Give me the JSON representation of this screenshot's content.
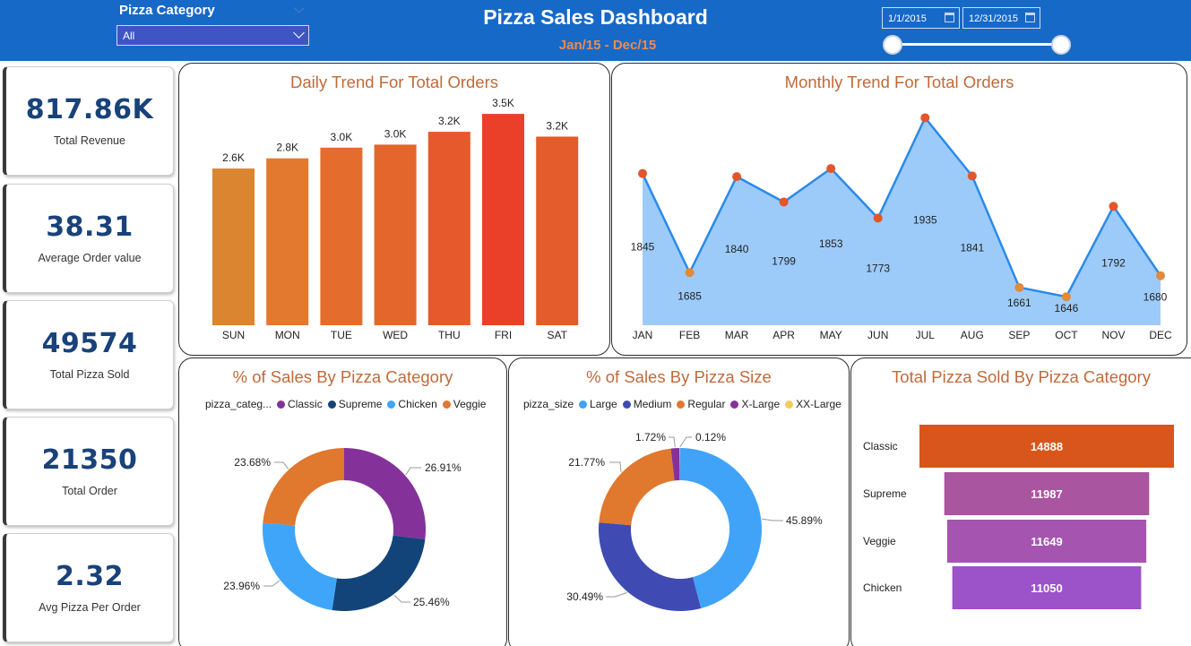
{
  "header": {
    "title": "Pizza Sales Dashboard",
    "subtitle": "Jan/15 - Dec/15",
    "filter_label": "Pizza Category",
    "filter_value": "All",
    "start_date": "1/1/2015",
    "end_date": "12/31/2015",
    "accent_color": "#1769c8"
  },
  "kpis": [
    {
      "value": "817.86K",
      "label": "Total Revenue"
    },
    {
      "value": "38.31",
      "label": "Average Order value"
    },
    {
      "value": "49574",
      "label": "Total Pizza Sold"
    },
    {
      "value": "21350",
      "label": "Total Order"
    },
    {
      "value": "2.32",
      "label": "Avg Pizza Per Order"
    }
  ],
  "panels": {
    "daily_title": "Daily Trend For Total Orders",
    "monthly_title": "Monthly Trend For Total Orders",
    "category_title": "% of Sales By Pizza Category",
    "size_title": "% of Sales By Pizza Size",
    "sold_title": "Total Pizza Sold By Pizza Category"
  },
  "chart_data": [
    {
      "id": "daily",
      "type": "bar",
      "title": "Daily Trend For Total Orders",
      "categories": [
        "SUN",
        "MON",
        "TUE",
        "WED",
        "THU",
        "FRI",
        "SAT"
      ],
      "values": [
        2624,
        2794,
        2973,
        3024,
        3239,
        3538,
        3158
      ],
      "labels": [
        "2.6K",
        "2.8K",
        "3.0K",
        "3.0K",
        "3.2K",
        "3.5K",
        "3.2K"
      ],
      "colors": [
        "#dc8530",
        "#e2792f",
        "#e46d2e",
        "#e4662d",
        "#e6592c",
        "#ea3f28",
        "#e45b2c"
      ],
      "ylim": [
        0,
        3600
      ]
    },
    {
      "id": "monthly",
      "type": "area",
      "title": "Monthly Trend For Total Orders",
      "categories": [
        "JAN",
        "FEB",
        "MAR",
        "APR",
        "MAY",
        "JUN",
        "JUL",
        "AUG",
        "SEP",
        "OCT",
        "NOV",
        "DEC"
      ],
      "values": [
        1845,
        1685,
        1840,
        1799,
        1853,
        1773,
        1935,
        1841,
        1661,
        1646,
        1792,
        1680
      ],
      "labels": [
        "1845",
        "1685",
        "1840",
        "1799",
        "1853",
        "1773",
        "1935",
        "1841",
        "1661",
        "1646",
        "1792",
        "1680"
      ],
      "ylim": [
        1600,
        1940
      ],
      "line_color": "#2b8ae8",
      "fill_color": "#9ccbfa",
      "marker_colors": [
        "#e4552b",
        "#e18a3a",
        "#e4552b",
        "#e4552b",
        "#e4552b",
        "#e4552b",
        "#e4552b",
        "#e4552b",
        "#e18a3a",
        "#e18a3a",
        "#e4552b",
        "#e18a3a"
      ]
    },
    {
      "id": "category",
      "type": "pie",
      "title": "% of Sales By Pizza Category",
      "legend_title": "pizza_categ...",
      "labels": [
        "Classic",
        "Supreme",
        "Chicken",
        "Veggie"
      ],
      "values": [
        26.91,
        25.46,
        23.96,
        23.68
      ],
      "value_labels": [
        "26.91%",
        "25.46%",
        "23.96%",
        "23.68%"
      ],
      "colors": [
        "#85319a",
        "#124479",
        "#3fa5f8",
        "#e0782e"
      ]
    },
    {
      "id": "size",
      "type": "pie",
      "title": "% of Sales By Pizza Size",
      "legend_title": "pizza_size",
      "labels": [
        "Large",
        "Medium",
        "Regular",
        "X-Large",
        "XX-Large"
      ],
      "values": [
        45.89,
        30.49,
        21.77,
        1.72,
        0.12
      ],
      "value_labels": [
        "45.89%",
        "30.49%",
        "21.77%",
        "1.72%",
        "0.12%"
      ],
      "colors": [
        "#40a3f7",
        "#3f4bb2",
        "#e0782e",
        "#86319b",
        "#f2cd5b"
      ]
    },
    {
      "id": "sold",
      "type": "bar",
      "orientation": "horizontal",
      "title": "Total Pizza Sold By Pizza Category",
      "categories": [
        "Classic",
        "Supreme",
        "Veggie",
        "Chicken"
      ],
      "values": [
        14888,
        11987,
        11649,
        11050
      ],
      "labels": [
        "14888",
        "11987",
        "11649",
        "11050"
      ],
      "colors": [
        "#d8561b",
        "#aa55a0",
        "#a555b0",
        "#9c52c9"
      ]
    }
  ]
}
